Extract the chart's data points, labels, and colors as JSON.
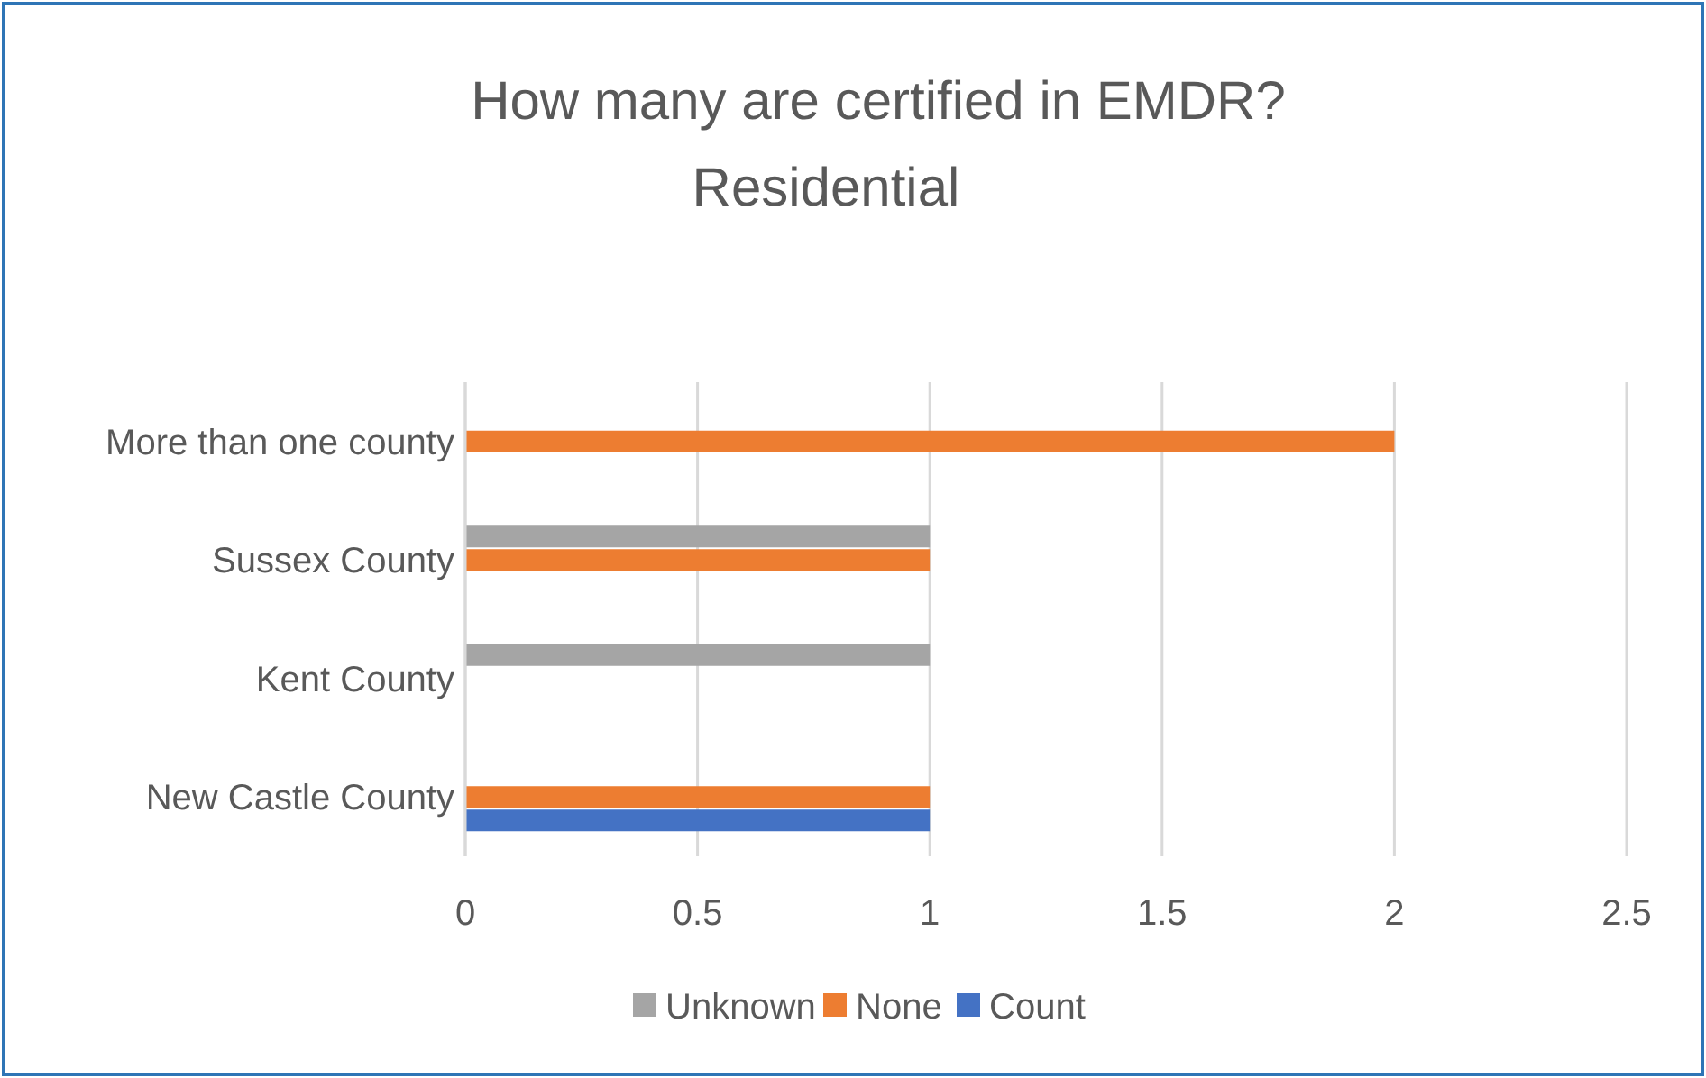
{
  "chart_data": {
    "type": "bar",
    "orientation": "horizontal",
    "title": "How many are certified in EMDR?",
    "subtitle": "Residential",
    "categories": [
      "More than one county",
      "Sussex County",
      "Kent County",
      "New Castle County"
    ],
    "series": [
      {
        "name": "Unknown",
        "color": "#a5a5a5",
        "values": [
          null,
          1,
          1,
          null
        ]
      },
      {
        "name": "None",
        "color": "#ed7d31",
        "values": [
          2,
          1,
          null,
          1
        ]
      },
      {
        "name": "Count",
        "color": "#4472c4",
        "values": [
          null,
          null,
          null,
          1
        ]
      }
    ],
    "xlim": [
      0,
      2.5
    ],
    "xticks": [
      0,
      0.5,
      1,
      1.5,
      2,
      2.5
    ],
    "grid": "x",
    "legend": "bottom"
  }
}
